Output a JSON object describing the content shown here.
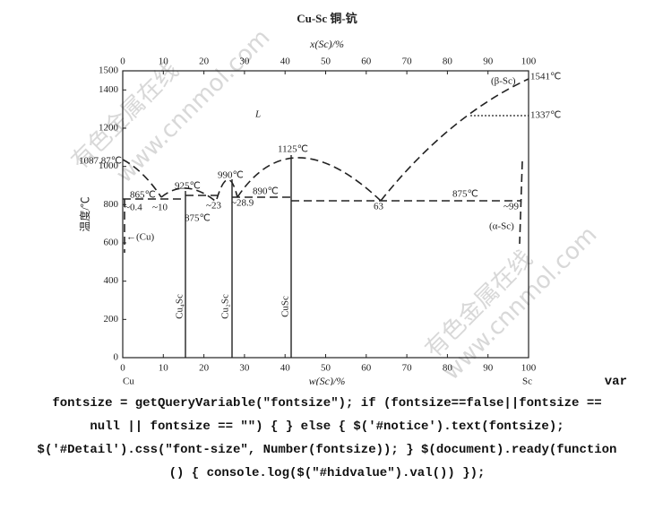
{
  "diagram": {
    "title": "Cu-Sc  铜-钪",
    "top_axis_label": "x(Sc)/%",
    "bottom_axis_label": "w(Sc)/%",
    "y_axis_label": "温度/℃",
    "top_ticks": [
      0,
      10,
      20,
      30,
      40,
      50,
      60,
      70,
      80,
      90,
      100
    ],
    "bottom_ticks": [
      0,
      10,
      20,
      30,
      40,
      50,
      60,
      70,
      80,
      90,
      100
    ],
    "y_ticks": [
      0,
      200,
      400,
      600,
      800,
      1000,
      1200,
      1400,
      1500
    ],
    "annotations": {
      "sc_melt": "1541℃",
      "beta_sc": "(β-Sc)",
      "sc_trans": "1337℃",
      "liquid": "L",
      "cusc_melt": "1125℃",
      "cu_melt": "1087.87℃",
      "cu4sc_melt": "925℃",
      "cu2sc_melt": "990℃",
      "eut_890": "890℃",
      "eut_865": "865℃",
      "eut_875_right": "875℃",
      "cu_sol": "~0.4",
      "eut_10": "~10",
      "per_875": "875℃",
      "eut_23": "~23",
      "eut_28": "~28.9",
      "eut_63": "63",
      "sc_sol": "~99",
      "alpha_sc": "(α-Sc)",
      "cu_phase": "←(Cu)",
      "cu4sc": "Cu₄Sc",
      "cu2sc": "Cu₂Sc",
      "cusc": "CuSc",
      "cu": "Cu",
      "sc": "Sc"
    }
  },
  "watermark": {
    "name": "有色金属在线",
    "url": "www.cnnmol.com"
  },
  "code": {
    "lines": [
      "var",
      "fontsize = getQueryVariable(\"fontsize\"); if (fontsize==false||fontsize ==",
      "null || fontsize == \"\") { } else { $('#notice').text(fontsize);",
      "$('#Detail').css(\"font-size\", Number(fontsize)); } $(document).ready(function",
      "() { console.log($(\"#hidvalue\").val()) });"
    ]
  }
}
